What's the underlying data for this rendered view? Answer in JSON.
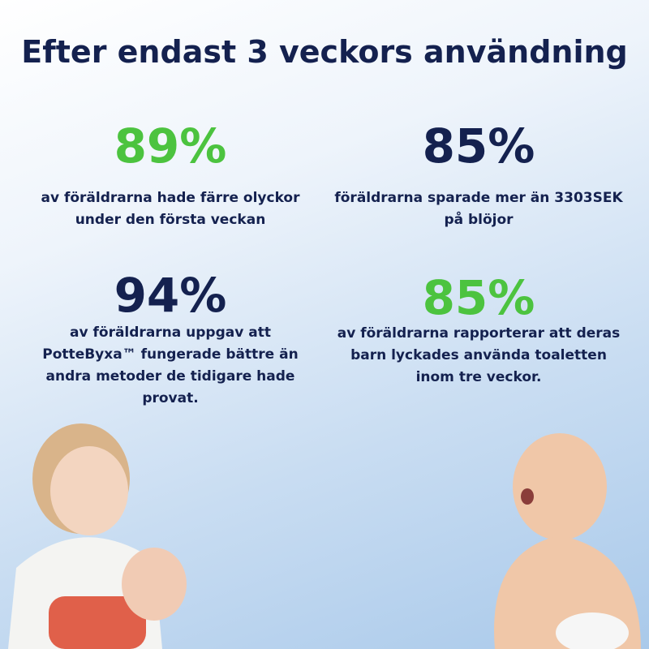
{
  "title": "Efter endast 3 veckors användning",
  "stats": [
    {
      "value": "89%",
      "color": "#4cc33f",
      "lines": [
        "av föräldrarna hade färre olyckor",
        "under den första veckan"
      ]
    },
    {
      "value": "85%",
      "color": "#14214f",
      "lines": [
        "föräldrarna sparade mer än 3303SEK",
        "på blöjor"
      ]
    },
    {
      "value": "94%",
      "color": "#14214f",
      "lines": [
        "av föräldrarna uppgav att",
        "PotteByxa™ fungerade bättre än",
        "andra metoder de tidigare hade",
        "provat."
      ]
    },
    {
      "value": "85%",
      "color": "#4cc33f",
      "lines": [
        "av föräldrarna rapporterar att deras",
        "barn lyckades använda toaletten",
        "inom tre veckor."
      ]
    }
  ]
}
